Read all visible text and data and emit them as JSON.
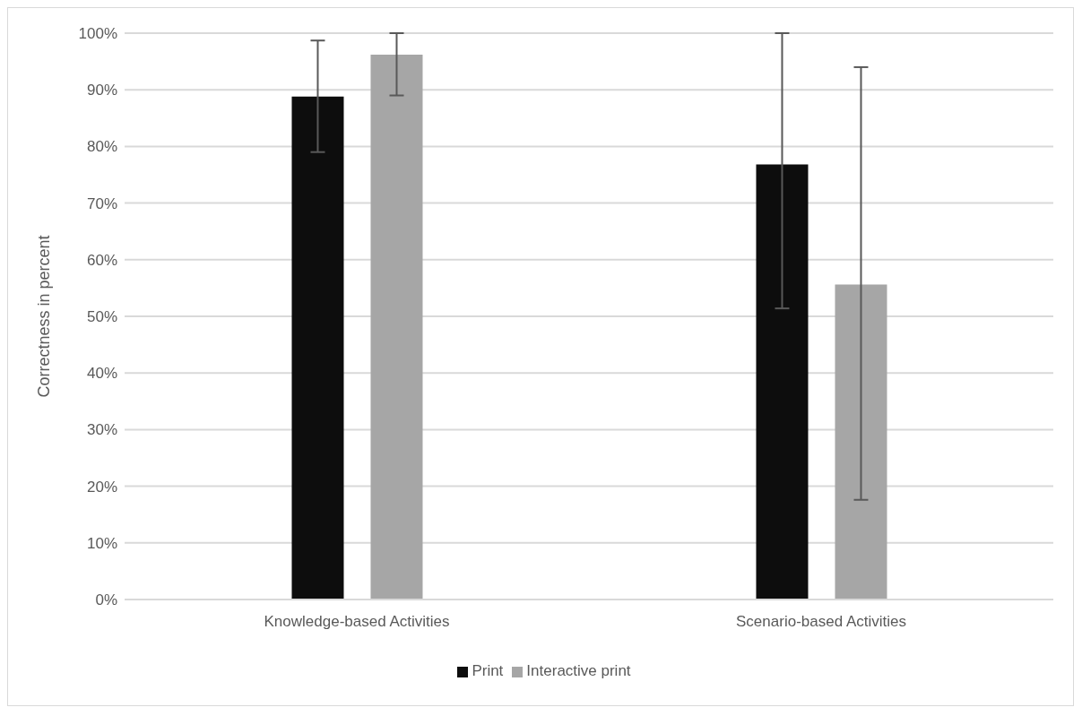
{
  "chart_data": {
    "type": "bar",
    "ylabel": "Correctness in percent",
    "categories": [
      "Knowledge-based Activities",
      "Scenario-based Activities"
    ],
    "series": [
      {
        "name": "Print",
        "color": "#0d0d0d",
        "values": [
          88.8,
          76.8
        ],
        "errors": [
          [
            79,
            98.7
          ],
          [
            51.4,
            100
          ]
        ]
      },
      {
        "name": "Interactive print",
        "color": "#a6a6a6",
        "values": [
          96.2,
          55.6
        ],
        "errors": [
          [
            89,
            100
          ],
          [
            17.6,
            94
          ]
        ]
      }
    ],
    "ylim": [
      0,
      100
    ],
    "yticks": [
      {
        "value": 0,
        "label": "0%"
      },
      {
        "value": 10,
        "label": "10%"
      },
      {
        "value": 20,
        "label": "20%"
      },
      {
        "value": 30,
        "label": "30%"
      },
      {
        "value": 40,
        "label": "40%"
      },
      {
        "value": 50,
        "label": "50%"
      },
      {
        "value": 60,
        "label": "60%"
      },
      {
        "value": 70,
        "label": "70%"
      },
      {
        "value": 80,
        "label": "80%"
      },
      {
        "value": 90,
        "label": "90%"
      },
      {
        "value": 100,
        "label": "100%"
      }
    ],
    "grid": "y",
    "legend": "bottom"
  }
}
